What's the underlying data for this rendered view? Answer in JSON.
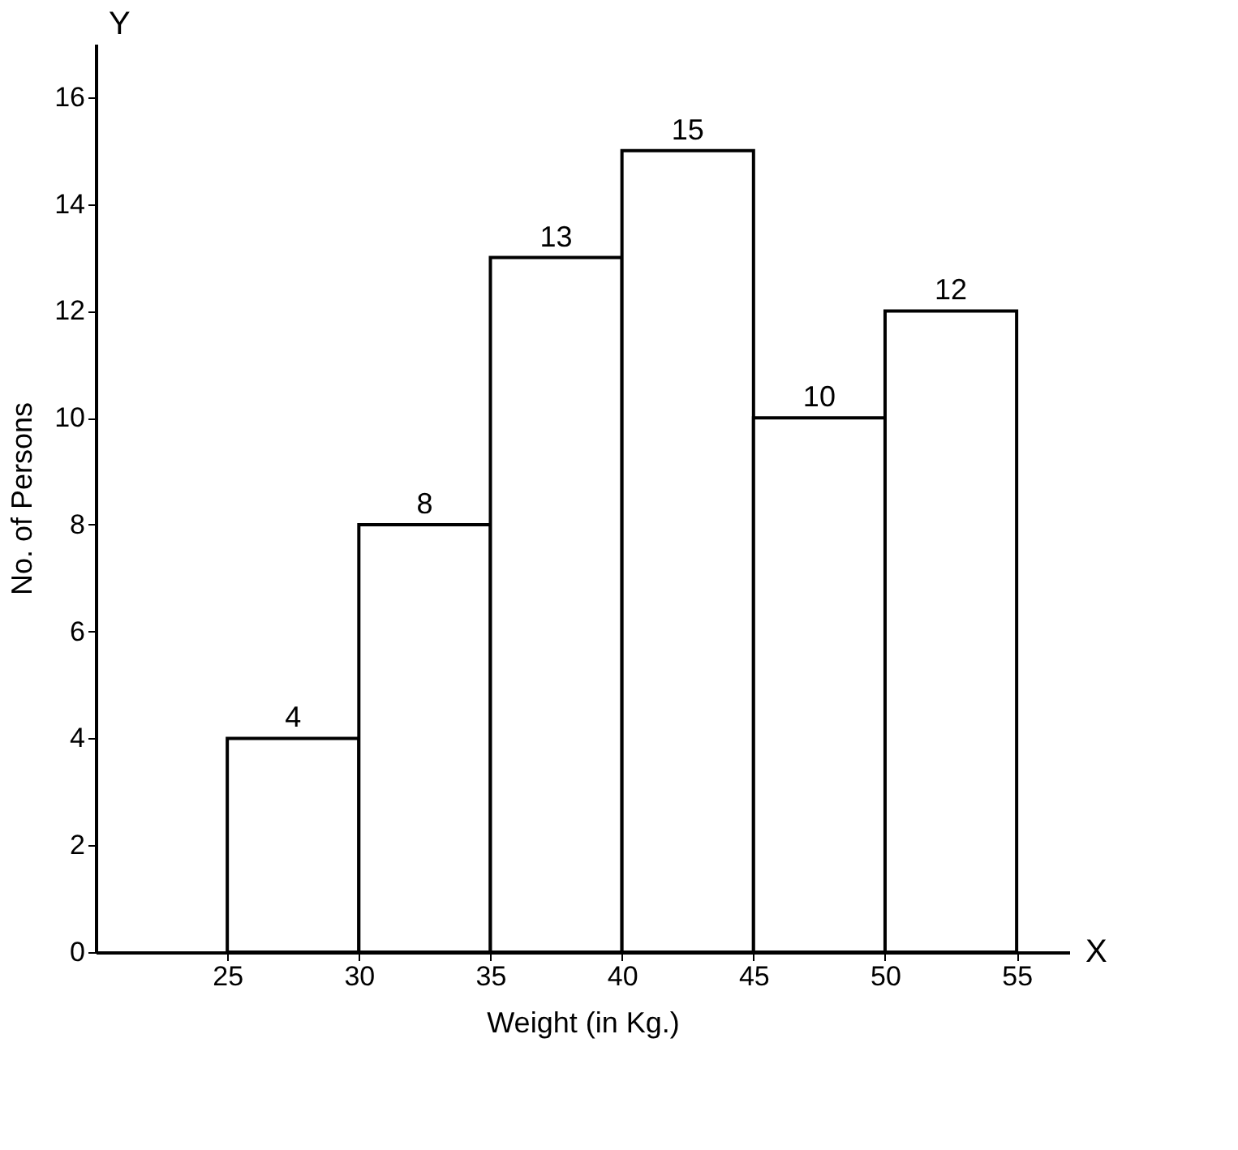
{
  "chart_data": {
    "type": "histogram",
    "xlabel": "Weight (in Kg.)",
    "ylabel": "No. of Persons",
    "bins": [
      25,
      30,
      35,
      40,
      45,
      50,
      55
    ],
    "values": [
      4,
      8,
      13,
      15,
      10,
      12
    ],
    "color": "#ffffff",
    "xlim": [
      20,
      57
    ],
    "xticks": [
      25,
      30,
      35,
      40,
      45,
      50,
      55
    ],
    "ylim": [
      0,
      17
    ],
    "yticks": [
      0,
      2,
      4,
      6,
      8,
      10,
      12,
      14,
      16
    ],
    "data_labels": true,
    "grid": false,
    "annotations": [
      "X",
      "Y"
    ]
  }
}
